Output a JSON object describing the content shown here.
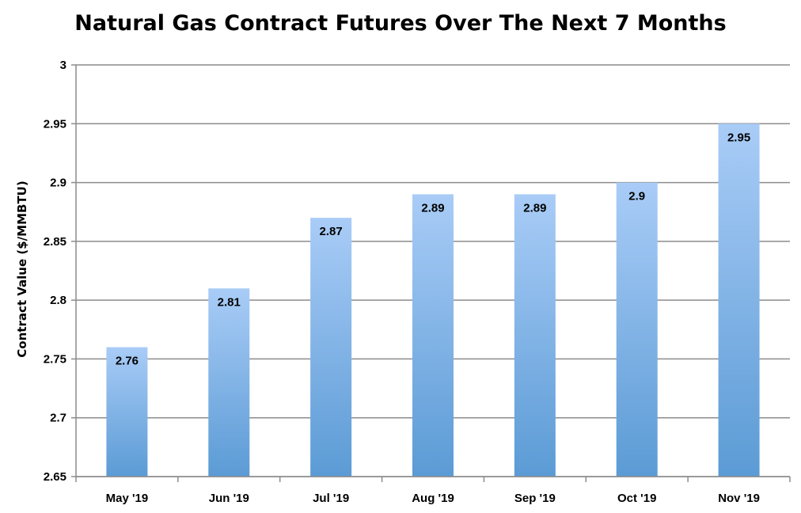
{
  "chart_data": {
    "type": "bar",
    "title": "Natural Gas Contract Futures Over The Next 7 Months",
    "ylabel": "Contract Value ($/MMBTU)",
    "xlabel": "",
    "categories": [
      "May '19",
      "Jun '19",
      "Jul '19",
      "Aug '19",
      "Sep '19",
      "Oct '19",
      "Nov '19"
    ],
    "values": [
      2.76,
      2.81,
      2.87,
      2.89,
      2.89,
      2.9,
      2.95
    ],
    "data_labels": [
      "2.76",
      "2.81",
      "2.87",
      "2.89",
      "2.89",
      "2.9",
      "2.95"
    ],
    "ylim": [
      2.65,
      3
    ],
    "yticks": [
      2.65,
      2.7,
      2.75,
      2.8,
      2.85,
      2.9,
      2.95,
      3
    ],
    "ytick_labels": [
      "2.65",
      "2.7",
      "2.75",
      "2.8",
      "2.85",
      "2.9",
      "2.95",
      "3"
    ],
    "grid": true,
    "legend": "none",
    "bar_color_top": "#a9ccf7",
    "bar_color_bottom": "#5b9bd5",
    "grid_color": "#8c8c8c"
  }
}
